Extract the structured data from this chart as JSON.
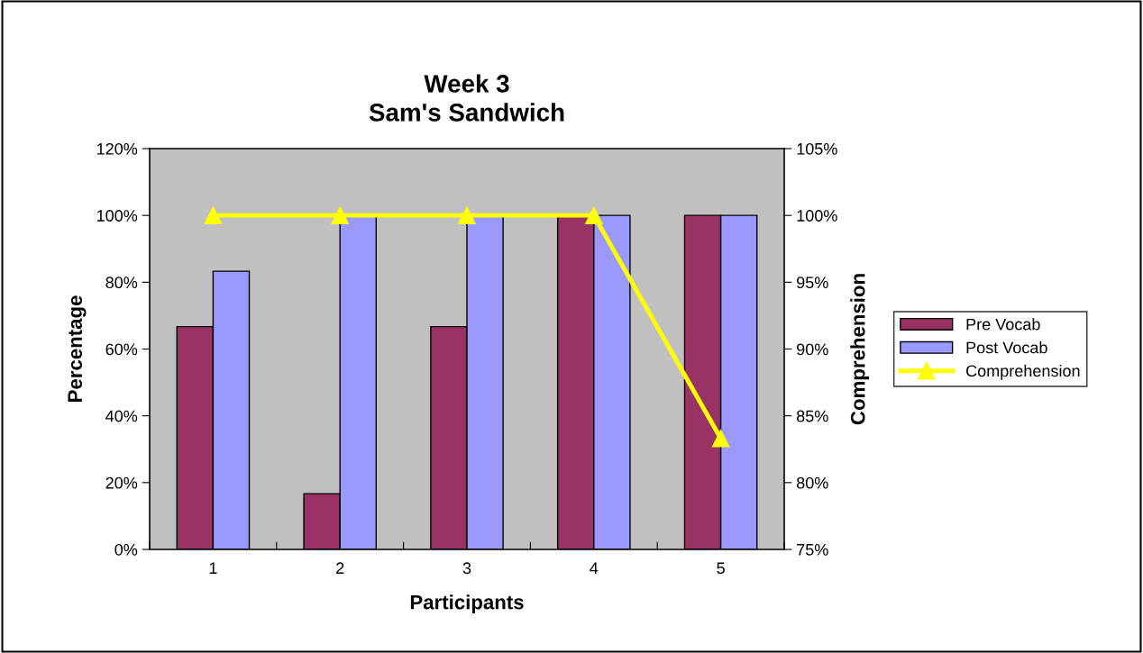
{
  "chart_data": {
    "type": "bar",
    "title": "Week 3\nSam's Sandwich",
    "xlabel": "Participants",
    "ylabel": "Percentage",
    "y2label": "Comprehension",
    "categories": [
      "1",
      "2",
      "3",
      "4",
      "5"
    ],
    "series": [
      {
        "name": "Pre Vocab",
        "color": "#993366",
        "values": [
          66.7,
          16.7,
          66.7,
          100,
          100
        ]
      },
      {
        "name": "Post Vocab",
        "color": "#9999ff",
        "values": [
          83.3,
          100,
          100,
          100,
          100
        ]
      },
      {
        "name": "Comprehension",
        "type": "line",
        "axis": "y2",
        "color": "#ffff00",
        "marker": "triangle",
        "values": [
          100,
          100,
          100,
          100,
          83.3
        ]
      }
    ],
    "ylim": [
      0,
      120
    ],
    "yticks": [
      {
        "value": 0,
        "label": "0%"
      },
      {
        "value": 20,
        "label": "20%"
      },
      {
        "value": 40,
        "label": "40%"
      },
      {
        "value": 60,
        "label": "60%"
      },
      {
        "value": 80,
        "label": "80%"
      },
      {
        "value": 100,
        "label": "100%"
      },
      {
        "value": 120,
        "label": "120%"
      }
    ],
    "y2lim": [
      75,
      105
    ],
    "y2ticks": [
      {
        "value": 75,
        "label": "75%"
      },
      {
        "value": 80,
        "label": "80%"
      },
      {
        "value": 85,
        "label": "85%"
      },
      {
        "value": 90,
        "label": "90%"
      },
      {
        "value": 95,
        "label": "95%"
      },
      {
        "value": 100,
        "label": "100%"
      },
      {
        "value": 105,
        "label": "105%"
      }
    ],
    "grid": false,
    "legend": "right"
  }
}
